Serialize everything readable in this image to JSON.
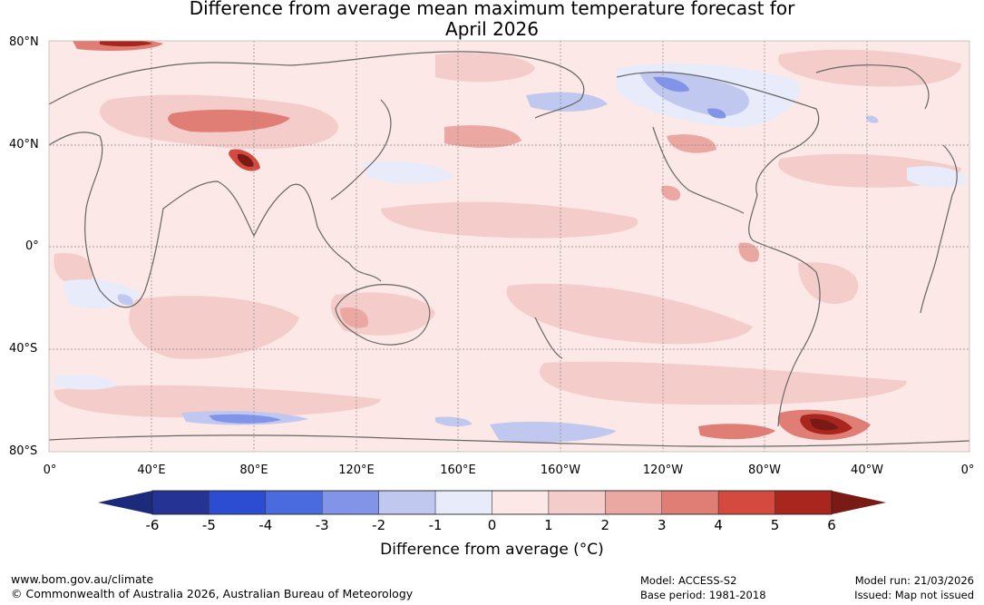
{
  "title": {
    "line1": "Difference from average mean maximum temperature forecast for",
    "line2": "April 2026"
  },
  "map": {
    "lat_labels": [
      "80°N",
      "40°N",
      "0°",
      "40°S",
      "80°S"
    ],
    "lon_labels": [
      "0°",
      "40°E",
      "80°E",
      "120°E",
      "160°E",
      "160°W",
      "120°W",
      "80°W",
      "40°W",
      "0°"
    ]
  },
  "colorbar": {
    "title": "Difference from average (°C)",
    "tick_labels": [
      "-6",
      "-5",
      "-4",
      "-3",
      "-2",
      "-1",
      "0",
      "1",
      "2",
      "3",
      "4",
      "5",
      "6"
    ],
    "colors": [
      "#253494",
      "#2c4cd1",
      "#4a6be0",
      "#8194e8",
      "#c0c8f0",
      "#e8ecfa",
      "#fce8e6",
      "#f4cdca",
      "#eba8a3",
      "#e07e76",
      "#d44a3e",
      "#a8261e"
    ],
    "under_color": "#1b2a7a",
    "over_color": "#7a1a14"
  },
  "footer": {
    "website": "www.bom.gov.au/climate",
    "copyright": "© Commonwealth of Australia 2026, Australian Bureau of Meteorology",
    "model": "Model: ACCESS-S2",
    "base_period": "Base period: 1981-2018",
    "model_run": "Model run: 21/03/2026",
    "issued": "Issued: Map not issued"
  }
}
